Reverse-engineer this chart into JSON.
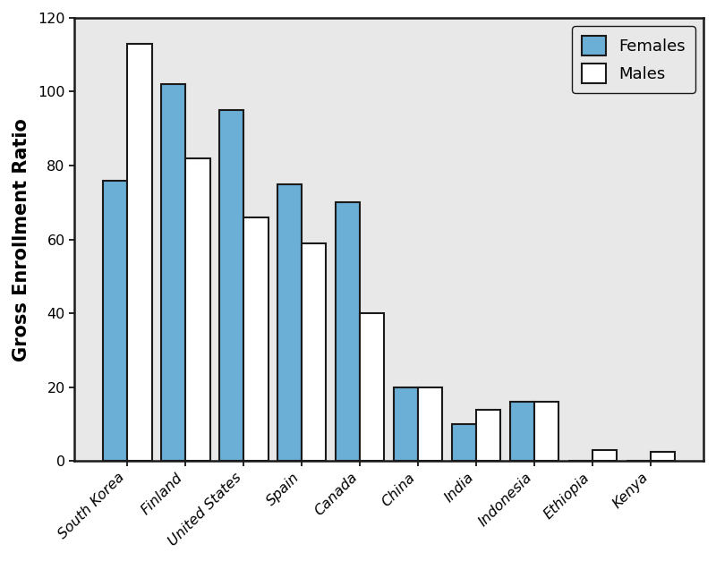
{
  "countries": [
    "South Korea",
    "Finland",
    "United States",
    "Spain",
    "Canada",
    "China",
    "India",
    "Indonesia",
    "Ethiopia",
    "Kenya"
  ],
  "females": [
    76,
    102,
    95,
    75,
    70,
    20,
    10,
    16,
    0,
    0
  ],
  "males": [
    113,
    82,
    66,
    59,
    40,
    20,
    14,
    16,
    3,
    2.5
  ],
  "female_color": "#6BAED6",
  "male_color": "#FFFFFF",
  "bar_edge_color": "#1A1A1A",
  "plot_bg_color": "#E8E8E8",
  "outer_bg_color": "#FFFFFF",
  "ylabel": "Gross Enrollment Ratio",
  "ylim": [
    0,
    120
  ],
  "yticks": [
    0,
    20,
    40,
    60,
    80,
    100,
    120
  ],
  "legend_labels": [
    "Females",
    "Males"
  ],
  "bar_width": 0.42,
  "ylabel_fontsize": 15,
  "tick_fontsize": 11.5,
  "legend_fontsize": 13
}
